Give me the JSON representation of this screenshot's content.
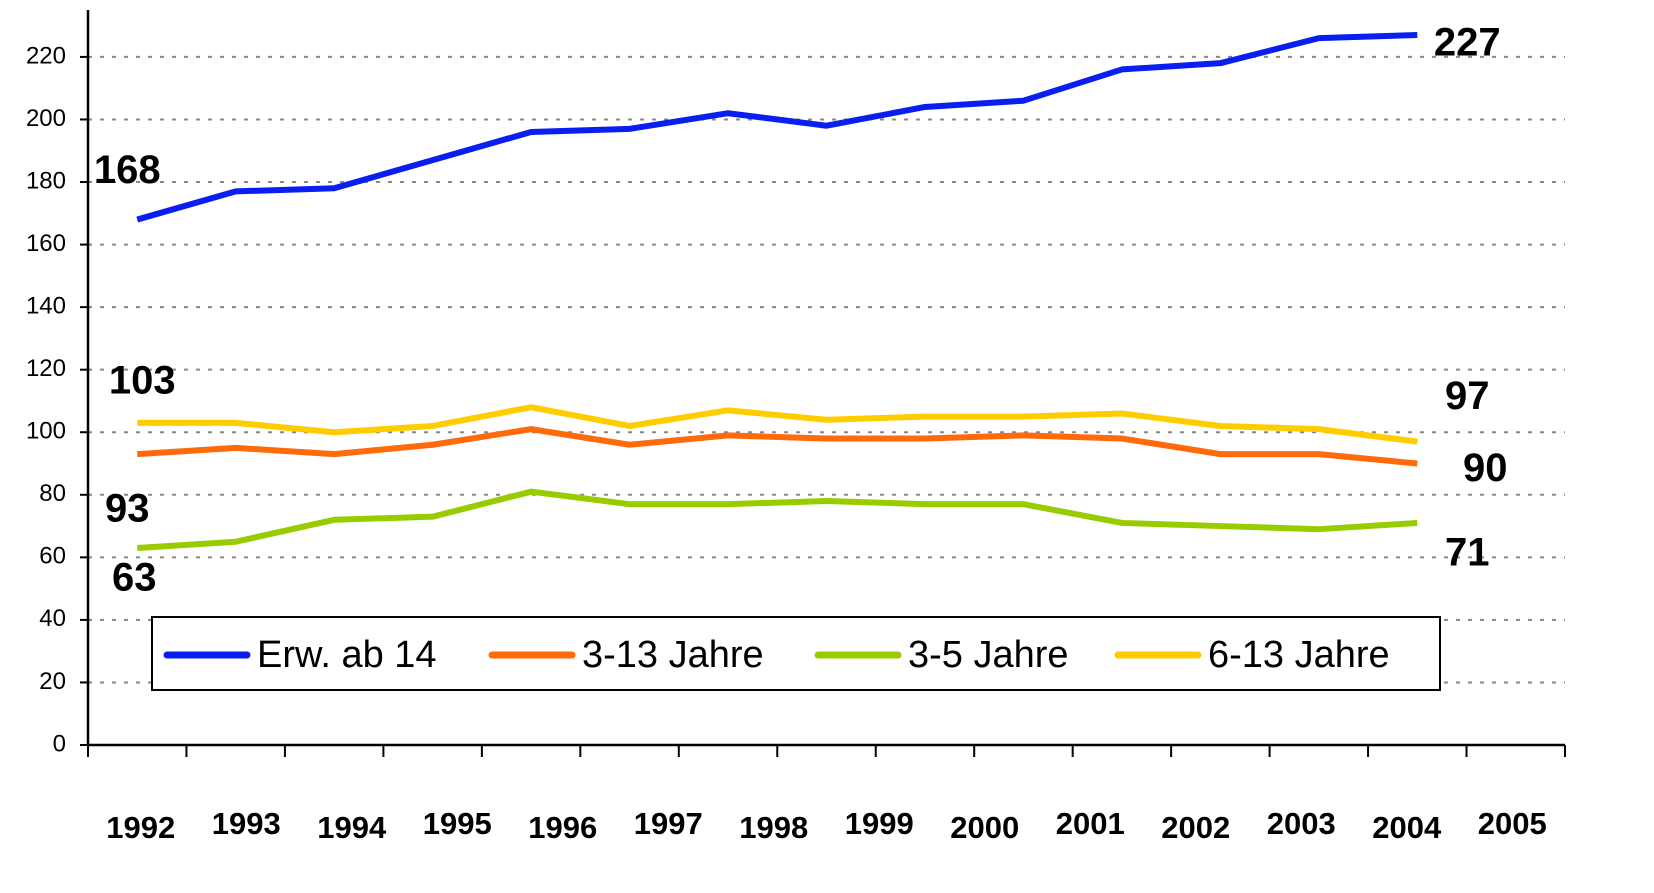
{
  "chart_data": {
    "type": "line",
    "categories": [
      "1992",
      "1993",
      "1994",
      "1995",
      "1996",
      "1997",
      "1998",
      "1999",
      "2000",
      "2001",
      "2002",
      "2003",
      "2004",
      "2005"
    ],
    "series": [
      {
        "name": "Erw. ab 14",
        "color": "#0a1ef0",
        "values": [
          168,
          177,
          178,
          187,
          196,
          197,
          202,
          198,
          204,
          206,
          216,
          218,
          226,
          227
        ]
      },
      {
        "name": "3-13 Jahre",
        "color": "#ff6a0a",
        "values": [
          93,
          95,
          93,
          96,
          101,
          96,
          99,
          98,
          98,
          99,
          98,
          93,
          93,
          90
        ]
      },
      {
        "name": "3-5 Jahre",
        "color": "#99cc00",
        "values": [
          63,
          65,
          72,
          73,
          81,
          77,
          77,
          78,
          77,
          77,
          71,
          70,
          69,
          71
        ]
      },
      {
        "name": "6-13 Jahre",
        "color": "#ffcc00",
        "values": [
          103,
          103,
          100,
          102,
          108,
          102,
          107,
          104,
          105,
          105,
          106,
          102,
          101,
          97
        ]
      }
    ],
    "ylim": [
      0,
      235
    ],
    "yticks": [
      0,
      20,
      40,
      60,
      80,
      100,
      120,
      140,
      160,
      180,
      200,
      220
    ],
    "grid": true
  }
}
